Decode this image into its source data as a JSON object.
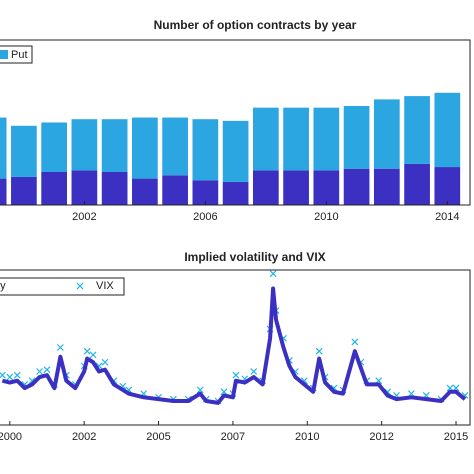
{
  "chart_data": [
    {
      "type": "bar",
      "title": "Number of option contracts by year",
      "stacked": true,
      "x": [
        1999,
        2000,
        2001,
        2002,
        2003,
        2004,
        2005,
        2006,
        2007,
        2008,
        2009,
        2010,
        2011,
        2012,
        2013,
        2014
      ],
      "series": [
        {
          "color": "#3b30c2",
          "values": [
            16,
            17,
            20,
            21,
            20,
            16,
            18,
            15,
            14,
            21,
            21,
            21,
            22,
            22,
            25,
            23
          ]
        },
        {
          "name": "Put",
          "color": "#2ba6e1",
          "values": [
            37,
            31,
            30,
            31,
            32,
            37,
            35,
            37,
            37,
            38,
            38,
            38,
            38,
            42,
            41,
            45
          ]
        }
      ],
      "xlim": [
        1999.21,
        2014.75
      ],
      "xticks": [
        2002,
        2006,
        2010,
        2014
      ],
      "ylim": [
        0,
        100
      ],
      "legend": "upper left"
    },
    {
      "type": "line",
      "title": "Implied volatility and VIX",
      "x": [
        1999.75,
        2000.0,
        2000.25,
        2000.5,
        2000.75,
        2001.0,
        2001.25,
        2001.5,
        2001.7,
        2001.9,
        2002.2,
        2002.5,
        2002.6,
        2002.8,
        2003.0,
        2003.2,
        2003.5,
        2003.8,
        2004.0,
        2004.5,
        2005.0,
        2005.5,
        2006.0,
        2006.4,
        2006.6,
        2007.0,
        2007.2,
        2007.5,
        2007.6,
        2007.9,
        2008.2,
        2008.5,
        2008.75,
        2008.85,
        2008.95,
        2009.2,
        2009.4,
        2009.6,
        2009.9,
        2010.2,
        2010.4,
        2010.6,
        2010.9,
        2011.2,
        2011.6,
        2011.8,
        2012.0,
        2012.4,
        2012.7,
        2013.0,
        2013.5,
        2014.0,
        2014.5,
        2014.8,
        2015.0,
        2015.3
      ],
      "series": [
        {
          "name": "Implied volatility",
          "color": "#3b30c2",
          "style": "line",
          "values": [
            22,
            21,
            22,
            18,
            20,
            24,
            25,
            18,
            35,
            22,
            18,
            27,
            34,
            32,
            27,
            28,
            20,
            17,
            15,
            13,
            12,
            11,
            11,
            15,
            11,
            10,
            14,
            13,
            22,
            21,
            24,
            20,
            45,
            72,
            55,
            40,
            30,
            24,
            20,
            16,
            34,
            21,
            16,
            15,
            38,
            29,
            20,
            20,
            14,
            12,
            13,
            12,
            11,
            16,
            16,
            12
          ]
        },
        {
          "name": "VIX",
          "color": "#1fb5e8",
          "style": "marker",
          "values": [
            25,
            24,
            25,
            20,
            22,
            27,
            28,
            20,
            40,
            25,
            20,
            30,
            38,
            36,
            30,
            32,
            22,
            19,
            17,
            15,
            13,
            12,
            12,
            17,
            12,
            11,
            16,
            15,
            25,
            23,
            27,
            22,
            50,
            80,
            60,
            45,
            33,
            27,
            22,
            18,
            38,
            24,
            18,
            17,
            43,
            32,
            22,
            22,
            16,
            14,
            15,
            14,
            12,
            18,
            18,
            14
          ]
        }
      ],
      "xlim": [
        1999.67,
        2015.47
      ],
      "xticks": [
        2000,
        {
          "value": 2002.5,
          "label": "2002"
        },
        2005,
        {
          "value": 2007.5,
          "label": "2007"
        },
        2010,
        {
          "value": 2012.5,
          "label": "2012"
        },
        2015
      ],
      "ylim": [
        -2,
        82
      ],
      "legend": "upper left"
    }
  ]
}
